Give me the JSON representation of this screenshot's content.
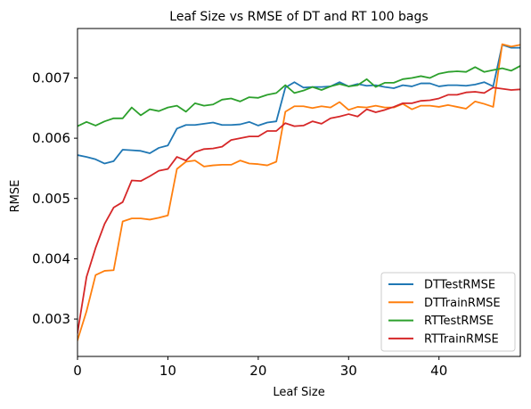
{
  "chart_data": {
    "type": "line",
    "title": "Leaf Size vs RMSE of DT and RT 100 bags",
    "xlabel": "Leaf Size",
    "ylabel": "RMSE",
    "xlim": [
      0,
      49
    ],
    "ylim": [
      0.00238,
      0.00782
    ],
    "xticks": [
      0,
      10,
      20,
      30,
      40
    ],
    "yticks": [
      0.003,
      0.004,
      0.005,
      0.006,
      0.007
    ],
    "xtick_labels": [
      "0",
      "10",
      "20",
      "30",
      "40"
    ],
    "ytick_labels": [
      "0.003",
      "0.004",
      "0.005",
      "0.006",
      "0.007"
    ],
    "grid": false,
    "legend_position": "lower-right",
    "x": [
      0,
      1,
      2,
      3,
      4,
      5,
      6,
      7,
      8,
      9,
      10,
      11,
      12,
      13,
      14,
      15,
      16,
      17,
      18,
      19,
      20,
      21,
      22,
      23,
      24,
      25,
      26,
      27,
      28,
      29,
      30,
      31,
      32,
      33,
      34,
      35,
      36,
      37,
      38,
      39,
      40,
      41,
      42,
      43,
      44,
      45,
      46,
      47,
      48,
      49
    ],
    "series": [
      {
        "name": "DTTestRMSE",
        "color": "#1f77b4",
        "values": [
          0.00572,
          0.00569,
          0.00565,
          0.00558,
          0.00562,
          0.00581,
          0.0058,
          0.00579,
          0.00575,
          0.00584,
          0.00588,
          0.00616,
          0.00622,
          0.00622,
          0.00624,
          0.00626,
          0.00622,
          0.00622,
          0.00623,
          0.00627,
          0.00621,
          0.00626,
          0.00628,
          0.00684,
          0.00693,
          0.00684,
          0.00685,
          0.00685,
          0.00686,
          0.00693,
          0.00686,
          0.0069,
          0.00687,
          0.00688,
          0.00685,
          0.00683,
          0.00688,
          0.00686,
          0.00691,
          0.00691,
          0.00686,
          0.00688,
          0.00688,
          0.00687,
          0.00689,
          0.00693,
          0.00686,
          0.00755,
          0.0075,
          0.0075
        ]
      },
      {
        "name": "DTTrainRMSE",
        "color": "#ff7f0e",
        "values": [
          0.00265,
          0.00313,
          0.00373,
          0.0038,
          0.00381,
          0.00462,
          0.00467,
          0.00467,
          0.00465,
          0.00468,
          0.00472,
          0.00549,
          0.00561,
          0.00563,
          0.00553,
          0.00555,
          0.00556,
          0.00556,
          0.00563,
          0.00558,
          0.00557,
          0.00555,
          0.00561,
          0.00644,
          0.00653,
          0.00653,
          0.0065,
          0.00653,
          0.00651,
          0.0066,
          0.00647,
          0.00652,
          0.00651,
          0.00654,
          0.00651,
          0.00651,
          0.00657,
          0.00648,
          0.00654,
          0.00654,
          0.00652,
          0.00655,
          0.00652,
          0.00649,
          0.00661,
          0.00657,
          0.00652,
          0.00756,
          0.00752,
          0.00755
        ]
      },
      {
        "name": "RTTestRMSE",
        "color": "#2ca02c",
        "values": [
          0.0062,
          0.00627,
          0.00621,
          0.00628,
          0.00633,
          0.00633,
          0.00651,
          0.00638,
          0.00648,
          0.00645,
          0.00651,
          0.00654,
          0.00644,
          0.00658,
          0.00654,
          0.00656,
          0.00664,
          0.00666,
          0.00661,
          0.00668,
          0.00667,
          0.00672,
          0.00675,
          0.00688,
          0.00675,
          0.00679,
          0.00685,
          0.0068,
          0.00686,
          0.0069,
          0.00686,
          0.00688,
          0.00698,
          0.00685,
          0.00692,
          0.00692,
          0.00698,
          0.007,
          0.00703,
          0.007,
          0.00707,
          0.0071,
          0.00711,
          0.0071,
          0.00718,
          0.0071,
          0.00713,
          0.00716,
          0.00712,
          0.0072
        ]
      },
      {
        "name": "RTTrainRMSE",
        "color": "#d62728",
        "values": [
          0.00277,
          0.0037,
          0.00418,
          0.00458,
          0.00485,
          0.00494,
          0.0053,
          0.00529,
          0.00537,
          0.00546,
          0.00549,
          0.00569,
          0.00563,
          0.00577,
          0.00582,
          0.00583,
          0.00586,
          0.00597,
          0.006,
          0.00603,
          0.00603,
          0.00612,
          0.00612,
          0.00625,
          0.0062,
          0.00621,
          0.00628,
          0.00624,
          0.00633,
          0.00636,
          0.0064,
          0.00636,
          0.00648,
          0.00643,
          0.00647,
          0.00652,
          0.00658,
          0.00658,
          0.00662,
          0.00663,
          0.00666,
          0.00672,
          0.00672,
          0.00676,
          0.00677,
          0.00675,
          0.00684,
          0.00682,
          0.0068,
          0.00681
        ]
      }
    ]
  }
}
